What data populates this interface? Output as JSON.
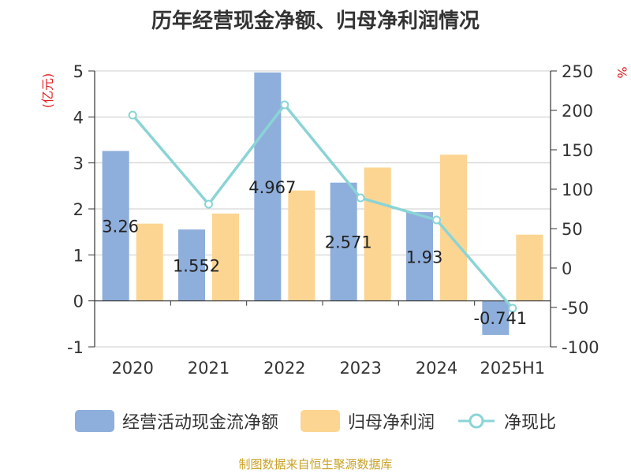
{
  "title": "历年经营现金净额、归母净利润情况",
  "left_unit": "(亿元)",
  "right_unit": "%",
  "source": "制图数据来自恒生聚源数据库",
  "legend": [
    {
      "label": "经营活动现金流净额",
      "color": "#8eaedb"
    },
    {
      "label": "归母净利润",
      "color": "#fcd592"
    },
    {
      "label": "净现比",
      "color": "#8ad4d6"
    }
  ],
  "chart_data": {
    "type": "bar",
    "categories": [
      "2020",
      "2021",
      "2022",
      "2023",
      "2024",
      "2025H1"
    ],
    "series": [
      {
        "name": "经营活动现金流净额",
        "type": "bar",
        "axis": "left",
        "color": "#8eaedb",
        "values": [
          3.26,
          1.552,
          4.967,
          2.571,
          1.93,
          -0.741
        ]
      },
      {
        "name": "归母净利润",
        "type": "bar",
        "axis": "left",
        "color": "#fcd592",
        "values": [
          1.68,
          1.9,
          2.4,
          2.9,
          3.18,
          1.44
        ]
      },
      {
        "name": "净现比",
        "type": "line",
        "axis": "right",
        "color": "#8ad4d6",
        "values": [
          194,
          81,
          207,
          89,
          61,
          -51
        ]
      }
    ],
    "bar_labels": [
      "3.26",
      "1.552",
      "4.967",
      "2.571",
      "1.93",
      "-0.741"
    ],
    "y_left": {
      "min": -1,
      "max": 5,
      "ticks": [
        -1,
        0,
        1,
        2,
        3,
        4,
        5
      ]
    },
    "y_right": {
      "min": -100,
      "max": 250,
      "ticks": [
        -100,
        -50,
        0,
        50,
        100,
        150,
        200,
        250
      ]
    },
    "grid": true
  }
}
